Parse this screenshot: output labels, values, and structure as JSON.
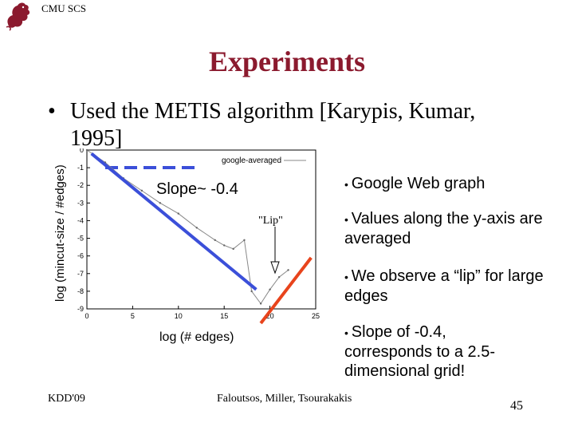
{
  "header": {
    "org": "CMU SCS"
  },
  "slide": {
    "title": "Experiments",
    "bullet": "Used the METIS algorithm [Karypis, Kumar,",
    "bullet_cont": "1995]"
  },
  "figure": {
    "ylabel": "log (mincut-size / #edges)",
    "xlabel": "log (# edges)",
    "slope_label": "Slope~ -0.4",
    "legend_label": "google-averaged",
    "lip_label": "\"Lip\"",
    "x_ticks": [
      "0",
      "5",
      "10",
      "15",
      "20",
      "25"
    ],
    "y_ticks": [
      "0",
      "-1",
      "-2",
      "-3",
      "-4",
      "-5",
      "-6",
      "-7",
      "-8",
      "-9"
    ]
  },
  "chart_data": {
    "type": "line",
    "xlabel": "log (# edges)",
    "ylabel": "log (mincut-size / #edges)",
    "xlim": [
      0,
      25
    ],
    "ylim": [
      -9,
      0
    ],
    "series": [
      {
        "name": "google-averaged",
        "x": [
          0,
          2,
          4,
          6,
          8,
          10,
          12,
          14,
          15,
          16,
          17.2,
          18,
          19,
          20,
          21,
          22
        ],
        "y": [
          0,
          -0.7,
          -1.6,
          -2.3,
          -3.0,
          -3.6,
          -4.4,
          -5.1,
          -5.4,
          -5.6,
          -5.1,
          -8.0,
          -8.7,
          -7.9,
          -7.2,
          -6.8
        ]
      }
    ],
    "annotations": {
      "slope_text": "Slope~ -0.4",
      "lip_text": "\"Lip\"",
      "blue_fit": {
        "x": [
          0.5,
          18.5
        ],
        "y": [
          -0.2,
          -7.9
        ]
      },
      "red_fit": {
        "x": [
          19,
          24.5
        ],
        "y": [
          -9,
          -6.1
        ]
      }
    },
    "grid": false,
    "legend": "top-right"
  },
  "bullets_right": [
    "Google Web graph",
    "Values along the y-axis are averaged",
    "We observe a “lip” for large edges",
    "Slope of -0.4, corresponds to a 2.5-dimensional grid!"
  ],
  "footer": {
    "left": "KDD'09",
    "center": "Faloutsos, Miller, Tsourakakis",
    "page": "45"
  },
  "colors": {
    "title": "#8b1a2e",
    "logo": "#8b1a2e",
    "blue_line": "#3b4fd9",
    "red_line": "#e8441c",
    "data_line": "#888888"
  }
}
